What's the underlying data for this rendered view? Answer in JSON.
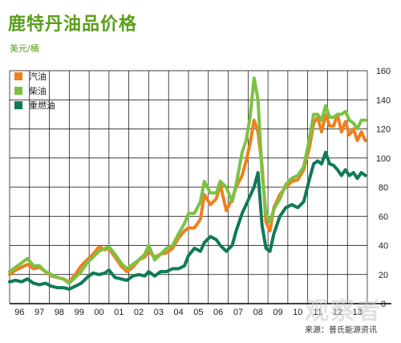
{
  "title": "鹿特丹油品价格",
  "unit": "美元/桶",
  "source": "来源：普氏能源资讯",
  "watermark": "观察者",
  "colors": {
    "gasoline": "#f07f1e",
    "diesel": "#7cc242",
    "fueloil": "#0f7a57",
    "title": "#5a9e1b"
  },
  "chart_data": {
    "type": "line",
    "title": "鹿特丹油品价格",
    "ylabel": "美元/桶",
    "ylim": [
      0,
      160
    ],
    "y_ticks": [
      0,
      20,
      40,
      60,
      80,
      100,
      120,
      140,
      160
    ],
    "x_ticks": [
      "96",
      "97",
      "98",
      "99",
      "00",
      "01",
      "02",
      "03",
      "04",
      "05",
      "06",
      "07",
      "08",
      "09",
      "10",
      "11",
      "12",
      "13"
    ],
    "xlim": [
      1996,
      2014
    ],
    "grid": true,
    "legend": "top-left",
    "series": [
      {
        "name": "汽油",
        "color": "#f07f1e",
        "points": [
          [
            1996.0,
            20
          ],
          [
            1996.3,
            23
          ],
          [
            1996.6,
            25
          ],
          [
            1996.9,
            27
          ],
          [
            1997.2,
            24
          ],
          [
            1997.5,
            25
          ],
          [
            1997.8,
            22
          ],
          [
            1998.1,
            19
          ],
          [
            1998.4,
            18
          ],
          [
            1998.7,
            17
          ],
          [
            1999.0,
            15
          ],
          [
            1999.3,
            20
          ],
          [
            1999.6,
            26
          ],
          [
            1999.9,
            30
          ],
          [
            2000.2,
            34
          ],
          [
            2000.5,
            39
          ],
          [
            2000.8,
            37
          ],
          [
            2001.0,
            38
          ],
          [
            2001.3,
            32
          ],
          [
            2001.6,
            26
          ],
          [
            2001.9,
            22
          ],
          [
            2002.2,
            25
          ],
          [
            2002.5,
            30
          ],
          [
            2002.8,
            32
          ],
          [
            2003.0,
            36
          ],
          [
            2003.3,
            32
          ],
          [
            2003.6,
            34
          ],
          [
            2003.9,
            35
          ],
          [
            2004.2,
            38
          ],
          [
            2004.5,
            45
          ],
          [
            2004.8,
            50
          ],
          [
            2005.0,
            52
          ],
          [
            2005.3,
            52
          ],
          [
            2005.6,
            58
          ],
          [
            2005.8,
            75
          ],
          [
            2006.1,
            68
          ],
          [
            2006.4,
            72
          ],
          [
            2006.6,
            82
          ],
          [
            2006.9,
            64
          ],
          [
            2007.2,
            72
          ],
          [
            2007.4,
            80
          ],
          [
            2007.7,
            88
          ],
          [
            2007.9,
            98
          ],
          [
            2008.1,
            110
          ],
          [
            2008.3,
            126
          ],
          [
            2008.5,
            118
          ],
          [
            2008.7,
            95
          ],
          [
            2008.9,
            56
          ],
          [
            2009.1,
            50
          ],
          [
            2009.3,
            66
          ],
          [
            2009.6,
            75
          ],
          [
            2009.9,
            80
          ],
          [
            2010.2,
            84
          ],
          [
            2010.5,
            85
          ],
          [
            2010.8,
            92
          ],
          [
            2011.1,
            108
          ],
          [
            2011.3,
            124
          ],
          [
            2011.5,
            128
          ],
          [
            2011.7,
            118
          ],
          [
            2011.9,
            130
          ],
          [
            2012.1,
            122
          ],
          [
            2012.3,
            122
          ],
          [
            2012.5,
            130
          ],
          [
            2012.7,
            118
          ],
          [
            2012.9,
            125
          ],
          [
            2013.1,
            116
          ],
          [
            2013.3,
            120
          ],
          [
            2013.5,
            112
          ],
          [
            2013.7,
            118
          ],
          [
            2013.9,
            112
          ]
        ]
      },
      {
        "name": "柴油",
        "color": "#7cc242",
        "points": [
          [
            1996.0,
            22
          ],
          [
            1996.3,
            25
          ],
          [
            1996.6,
            28
          ],
          [
            1996.9,
            31
          ],
          [
            1997.2,
            26
          ],
          [
            1997.5,
            26
          ],
          [
            1997.8,
            22
          ],
          [
            1998.1,
            20
          ],
          [
            1998.4,
            18
          ],
          [
            1998.7,
            17
          ],
          [
            1999.0,
            14
          ],
          [
            1999.3,
            18
          ],
          [
            1999.6,
            22
          ],
          [
            1999.9,
            28
          ],
          [
            2000.2,
            32
          ],
          [
            2000.5,
            36
          ],
          [
            2000.8,
            38
          ],
          [
            2001.0,
            39
          ],
          [
            2001.3,
            34
          ],
          [
            2001.6,
            28
          ],
          [
            2001.9,
            24
          ],
          [
            2002.2,
            27
          ],
          [
            2002.5,
            30
          ],
          [
            2002.8,
            34
          ],
          [
            2003.0,
            40
          ],
          [
            2003.3,
            30
          ],
          [
            2003.6,
            34
          ],
          [
            2003.9,
            38
          ],
          [
            2004.2,
            40
          ],
          [
            2004.5,
            48
          ],
          [
            2004.8,
            55
          ],
          [
            2005.0,
            62
          ],
          [
            2005.3,
            62
          ],
          [
            2005.6,
            70
          ],
          [
            2005.8,
            84
          ],
          [
            2006.1,
            76
          ],
          [
            2006.4,
            76
          ],
          [
            2006.6,
            84
          ],
          [
            2006.9,
            80
          ],
          [
            2007.2,
            70
          ],
          [
            2007.4,
            82
          ],
          [
            2007.7,
            104
          ],
          [
            2007.9,
            112
          ],
          [
            2008.1,
            128
          ],
          [
            2008.3,
            155
          ],
          [
            2008.5,
            140
          ],
          [
            2008.7,
            90
          ],
          [
            2008.9,
            62
          ],
          [
            2009.1,
            56
          ],
          [
            2009.3,
            65
          ],
          [
            2009.6,
            72
          ],
          [
            2009.9,
            82
          ],
          [
            2010.2,
            86
          ],
          [
            2010.5,
            88
          ],
          [
            2010.8,
            94
          ],
          [
            2011.1,
            114
          ],
          [
            2011.3,
            130
          ],
          [
            2011.5,
            130
          ],
          [
            2011.7,
            126
          ],
          [
            2011.9,
            136
          ],
          [
            2012.1,
            128
          ],
          [
            2012.3,
            128
          ],
          [
            2012.5,
            130
          ],
          [
            2012.7,
            130
          ],
          [
            2012.9,
            132
          ],
          [
            2013.1,
            126
          ],
          [
            2013.3,
            124
          ],
          [
            2013.5,
            120
          ],
          [
            2013.7,
            126
          ],
          [
            2013.9,
            126
          ]
        ]
      },
      {
        "name": "重燃油",
        "color": "#0f7a57",
        "points": [
          [
            1996.0,
            15
          ],
          [
            1996.3,
            16
          ],
          [
            1996.6,
            15
          ],
          [
            1996.9,
            17
          ],
          [
            1997.2,
            14
          ],
          [
            1997.5,
            13
          ],
          [
            1997.8,
            14
          ],
          [
            1998.1,
            12
          ],
          [
            1998.4,
            11
          ],
          [
            1998.7,
            11
          ],
          [
            1999.0,
            10
          ],
          [
            1999.3,
            12
          ],
          [
            1999.6,
            14
          ],
          [
            1999.9,
            18
          ],
          [
            2000.2,
            21
          ],
          [
            2000.5,
            20
          ],
          [
            2000.8,
            21
          ],
          [
            2001.0,
            23
          ],
          [
            2001.3,
            18
          ],
          [
            2001.6,
            17
          ],
          [
            2001.9,
            16
          ],
          [
            2002.2,
            19
          ],
          [
            2002.5,
            20
          ],
          [
            2002.8,
            19
          ],
          [
            2003.0,
            22
          ],
          [
            2003.3,
            19
          ],
          [
            2003.6,
            22
          ],
          [
            2003.9,
            22
          ],
          [
            2004.2,
            24
          ],
          [
            2004.5,
            24
          ],
          [
            2004.8,
            26
          ],
          [
            2005.0,
            33
          ],
          [
            2005.3,
            38
          ],
          [
            2005.6,
            36
          ],
          [
            2005.8,
            42
          ],
          [
            2006.1,
            46
          ],
          [
            2006.4,
            44
          ],
          [
            2006.6,
            40
          ],
          [
            2006.9,
            36
          ],
          [
            2007.2,
            40
          ],
          [
            2007.4,
            50
          ],
          [
            2007.7,
            62
          ],
          [
            2007.9,
            68
          ],
          [
            2008.1,
            74
          ],
          [
            2008.3,
            80
          ],
          [
            2008.5,
            90
          ],
          [
            2008.7,
            54
          ],
          [
            2008.9,
            38
          ],
          [
            2009.1,
            36
          ],
          [
            2009.3,
            48
          ],
          [
            2009.6,
            60
          ],
          [
            2009.9,
            66
          ],
          [
            2010.2,
            68
          ],
          [
            2010.5,
            66
          ],
          [
            2010.8,
            70
          ],
          [
            2011.1,
            86
          ],
          [
            2011.3,
            96
          ],
          [
            2011.5,
            98
          ],
          [
            2011.7,
            96
          ],
          [
            2011.9,
            104
          ],
          [
            2012.1,
            96
          ],
          [
            2012.3,
            95
          ],
          [
            2012.5,
            92
          ],
          [
            2012.7,
            88
          ],
          [
            2012.9,
            92
          ],
          [
            2013.1,
            88
          ],
          [
            2013.3,
            90
          ],
          [
            2013.5,
            86
          ],
          [
            2013.7,
            90
          ],
          [
            2013.9,
            88
          ]
        ]
      }
    ]
  }
}
